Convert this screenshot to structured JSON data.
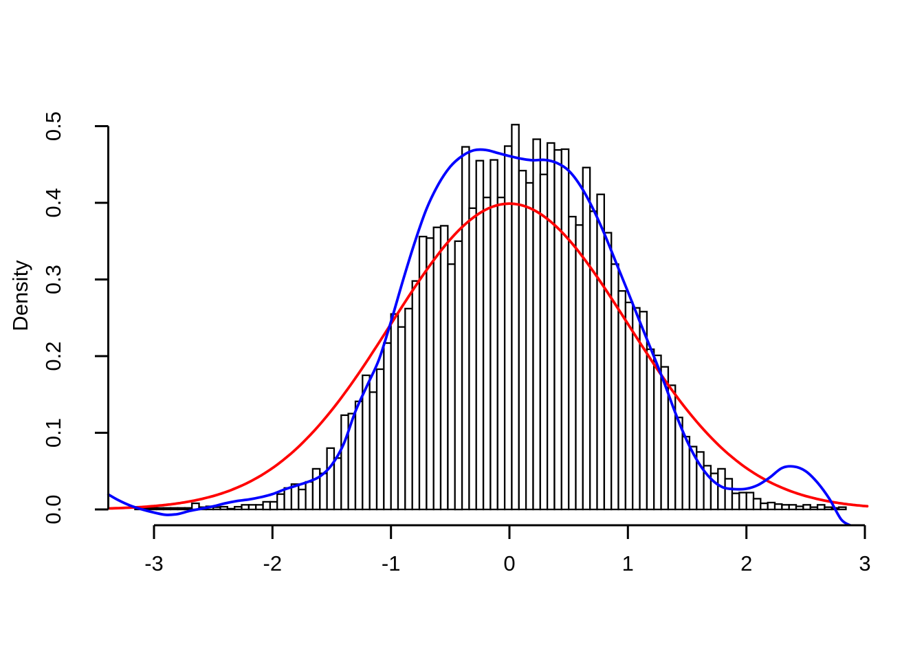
{
  "figure": {
    "background": "#ffffff",
    "foreground": "#000000"
  },
  "chart_data": {
    "type": "histogram",
    "title": "",
    "xlabel": "",
    "ylabel": "Density",
    "grid": false,
    "legend": "none",
    "xlim": [
      -3.39,
      3.03
    ],
    "ylim": [
      -0.021,
      0.52
    ],
    "x_axis": {
      "ticks": [
        -3,
        -2,
        -1,
        0,
        1,
        2,
        3
      ],
      "labels": [
        "-3",
        "-2",
        "-1",
        "0",
        "1",
        "2",
        "3"
      ]
    },
    "y_axis": {
      "ticks": [
        0.0,
        0.1,
        0.2,
        0.3,
        0.4,
        0.5
      ],
      "labels": [
        "0.0",
        "0.1",
        "0.2",
        "0.3",
        "0.4",
        "0.5"
      ]
    },
    "histogram": {
      "bar_fill": "#ffffff",
      "bar_stroke": "#000000",
      "bin_start": -3.16,
      "bin_width": 0.06,
      "heights": [
        0.002,
        0.002,
        0.002,
        0.002,
        0.002,
        0.002,
        0.002,
        0.002,
        0.008,
        0.003,
        0.004,
        0.003,
        0.0035,
        0.001,
        0.0035,
        0.006,
        0.006,
        0.006,
        0.01,
        0.01,
        0.02,
        0.028,
        0.033,
        0.026,
        0.036,
        0.053,
        0.047,
        0.08,
        0.067,
        0.123,
        0.125,
        0.141,
        0.175,
        0.153,
        0.183,
        0.217,
        0.255,
        0.238,
        0.262,
        0.298,
        0.356,
        0.354,
        0.368,
        0.37,
        0.32,
        0.35,
        0.473,
        0.393,
        0.455,
        0.407,
        0.456,
        0.407,
        0.474,
        0.502,
        0.442,
        0.426,
        0.483,
        0.437,
        0.478,
        0.469,
        0.47,
        0.382,
        0.371,
        0.446,
        0.389,
        0.411,
        0.361,
        0.32,
        0.285,
        0.27,
        0.263,
        0.258,
        0.209,
        0.201,
        0.186,
        0.162,
        0.12,
        0.095,
        0.082,
        0.075,
        0.057,
        0.047,
        0.053,
        0.04,
        0.021,
        0.022,
        0.022,
        0.014,
        0.008,
        0.009,
        0.007,
        0.006,
        0.006,
        0.004,
        0.006,
        0.003,
        0.006,
        0.003,
        0.002,
        0.003
      ]
    },
    "curves": [
      {
        "name": "normal-density",
        "color": "#ff0000",
        "distribution": "normal",
        "mean": 0,
        "sd": 1,
        "x_start": -3.38,
        "x_end": 3.02
      },
      {
        "name": "kernel-density-estimate",
        "color": "#0000ff",
        "points": [
          [
            -3.385,
            0.0195
          ],
          [
            -3.3,
            0.012
          ],
          [
            -3.2,
            0.005
          ],
          [
            -3.1,
            0.0
          ],
          [
            -3.0,
            -0.004
          ],
          [
            -2.9,
            -0.007
          ],
          [
            -2.8,
            -0.006
          ],
          [
            -2.7,
            -0.002
          ],
          [
            -2.6,
            0.001
          ],
          [
            -2.5,
            0.004
          ],
          [
            -2.4,
            0.008
          ],
          [
            -2.3,
            0.011
          ],
          [
            -2.2,
            0.013
          ],
          [
            -2.1,
            0.016
          ],
          [
            -2.0,
            0.02
          ],
          [
            -1.9,
            0.026
          ],
          [
            -1.8,
            0.031
          ],
          [
            -1.7,
            0.036
          ],
          [
            -1.6,
            0.043
          ],
          [
            -1.5,
            0.058
          ],
          [
            -1.4,
            0.085
          ],
          [
            -1.3,
            0.128
          ],
          [
            -1.2,
            0.162
          ],
          [
            -1.1,
            0.196
          ],
          [
            -1.0,
            0.245
          ],
          [
            -0.9,
            0.298
          ],
          [
            -0.8,
            0.348
          ],
          [
            -0.7,
            0.392
          ],
          [
            -0.6,
            0.424
          ],
          [
            -0.5,
            0.447
          ],
          [
            -0.4,
            0.461
          ],
          [
            -0.3,
            0.4685
          ],
          [
            -0.2,
            0.469
          ],
          [
            -0.1,
            0.465
          ],
          [
            0.0,
            0.461
          ],
          [
            0.1,
            0.4575
          ],
          [
            0.2,
            0.4555
          ],
          [
            0.3,
            0.456
          ],
          [
            0.4,
            0.452
          ],
          [
            0.5,
            0.442
          ],
          [
            0.6,
            0.422
          ],
          [
            0.7,
            0.394
          ],
          [
            0.8,
            0.36
          ],
          [
            0.9,
            0.322
          ],
          [
            1.0,
            0.284
          ],
          [
            1.1,
            0.245
          ],
          [
            1.2,
            0.207
          ],
          [
            1.3,
            0.168
          ],
          [
            1.4,
            0.126
          ],
          [
            1.5,
            0.089
          ],
          [
            1.6,
            0.06
          ],
          [
            1.7,
            0.04
          ],
          [
            1.8,
            0.029
          ],
          [
            1.9,
            0.0265
          ],
          [
            2.0,
            0.027
          ],
          [
            2.1,
            0.032
          ],
          [
            2.2,
            0.042
          ],
          [
            2.3,
            0.054
          ],
          [
            2.4,
            0.056
          ],
          [
            2.5,
            0.05
          ],
          [
            2.6,
            0.035
          ],
          [
            2.7,
            0.014
          ],
          [
            2.8,
            -0.013
          ],
          [
            2.88,
            -0.021
          ]
        ]
      }
    ]
  }
}
